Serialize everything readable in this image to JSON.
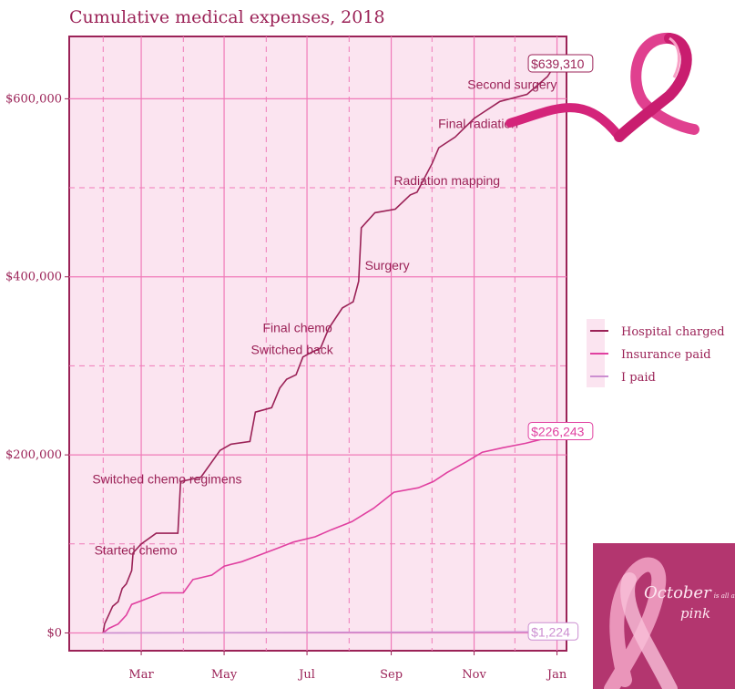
{
  "chart_data": {
    "type": "line",
    "title": "Cumulative medical expenses, 2018",
    "xlabel": "",
    "ylabel": "",
    "x_ticks": [
      "Mar",
      "May",
      "Jul",
      "Sep",
      "Nov",
      "Jan"
    ],
    "y_ticks": [
      "$0",
      "$200,000",
      "$400,000",
      "$600,000"
    ],
    "ylim": [
      -20000,
      670000
    ],
    "grid": true,
    "legend_position": "right",
    "series": [
      {
        "name": "Hospital charged",
        "color": "#9b2257",
        "end_label": "$639,310",
        "points": [
          [
            "2018-02-01",
            0
          ],
          [
            "2018-02-02",
            10000
          ],
          [
            "2018-02-05",
            20000
          ],
          [
            "2018-02-08",
            30000
          ],
          [
            "2018-02-12",
            35000
          ],
          [
            "2018-02-15",
            50000
          ],
          [
            "2018-02-18",
            55000
          ],
          [
            "2018-02-22",
            70000
          ],
          [
            "2018-02-23",
            90000
          ],
          [
            "2018-03-01",
            100000
          ],
          [
            "2018-03-12",
            112000
          ],
          [
            "2018-03-28",
            112000
          ],
          [
            "2018-03-30",
            170000
          ],
          [
            "2018-04-14",
            175000
          ],
          [
            "2018-04-28",
            205000
          ],
          [
            "2018-05-06",
            212000
          ],
          [
            "2018-05-20",
            215000
          ],
          [
            "2018-05-24",
            248000
          ],
          [
            "2018-06-05",
            253000
          ],
          [
            "2018-06-11",
            275000
          ],
          [
            "2018-06-16",
            285000
          ],
          [
            "2018-06-23",
            290000
          ],
          [
            "2018-06-28",
            310000
          ],
          [
            "2018-07-04",
            315000
          ],
          [
            "2018-07-11",
            320000
          ],
          [
            "2018-07-17",
            342000
          ],
          [
            "2018-07-27",
            365000
          ],
          [
            "2018-08-04",
            372000
          ],
          [
            "2018-08-08",
            395000
          ],
          [
            "2018-08-10",
            455000
          ],
          [
            "2018-08-20",
            472000
          ],
          [
            "2018-09-04",
            476000
          ],
          [
            "2018-09-15",
            492000
          ],
          [
            "2018-09-20",
            495000
          ],
          [
            "2018-10-01",
            527000
          ],
          [
            "2018-10-06",
            545000
          ],
          [
            "2018-10-18",
            557000
          ],
          [
            "2018-11-01",
            578000
          ],
          [
            "2018-11-05",
            582000
          ],
          [
            "2018-11-20",
            597000
          ],
          [
            "2018-12-10",
            605000
          ],
          [
            "2018-12-25",
            625000
          ],
          [
            "2018-12-31",
            639310
          ]
        ]
      },
      {
        "name": "Insurance paid",
        "color": "#e040a0",
        "end_label": "$226,243",
        "points": [
          [
            "2018-02-01",
            0
          ],
          [
            "2018-02-05",
            5000
          ],
          [
            "2018-02-12",
            10000
          ],
          [
            "2018-02-15",
            15000
          ],
          [
            "2018-02-18",
            20000
          ],
          [
            "2018-02-22",
            32000
          ],
          [
            "2018-03-01",
            36000
          ],
          [
            "2018-03-16",
            45000
          ],
          [
            "2018-04-01",
            45000
          ],
          [
            "2018-04-08",
            60000
          ],
          [
            "2018-04-22",
            65000
          ],
          [
            "2018-05-01",
            75000
          ],
          [
            "2018-05-14",
            80000
          ],
          [
            "2018-05-28",
            88000
          ],
          [
            "2018-06-09",
            95000
          ],
          [
            "2018-06-21",
            102000
          ],
          [
            "2018-07-07",
            108000
          ],
          [
            "2018-07-19",
            116000
          ],
          [
            "2018-08-03",
            125000
          ],
          [
            "2018-08-19",
            140000
          ],
          [
            "2018-09-03",
            158000
          ],
          [
            "2018-09-21",
            163000
          ],
          [
            "2018-10-02",
            170000
          ],
          [
            "2018-10-12",
            180000
          ],
          [
            "2018-10-26",
            192000
          ],
          [
            "2018-11-07",
            203000
          ],
          [
            "2018-11-22",
            208000
          ],
          [
            "2018-12-09",
            213000
          ],
          [
            "2018-12-22",
            218000
          ],
          [
            "2018-12-31",
            226243
          ]
        ]
      },
      {
        "name": "I paid",
        "color": "#cc8fd1",
        "end_label": "$1,224",
        "points": [
          [
            "2018-02-01",
            0
          ],
          [
            "2018-12-31",
            1224
          ]
        ]
      }
    ],
    "annotations": [
      {
        "text": "Started chemo",
        "x": "2018-02-25",
        "y": 88000
      },
      {
        "text": "Switched chemo regimens",
        "x": "2018-03-20",
        "y": 168000
      },
      {
        "text": "Switched back",
        "x": "2018-06-20",
        "y": 313000
      },
      {
        "text": "Final chemo",
        "x": "2018-06-24",
        "y": 338000
      },
      {
        "text": "Surgery",
        "x": "2018-08-29",
        "y": 408000
      },
      {
        "text": "Radiation mapping",
        "x": "2018-10-12",
        "y": 503000
      },
      {
        "text": "Final radiation",
        "x": "2018-11-04",
        "y": 567000
      },
      {
        "text": "Second surgery",
        "x": "2018-11-29",
        "y": 611000
      }
    ]
  },
  "decor": {
    "promo_text_line1": "October",
    "promo_text_small": "is all about",
    "promo_text_line2": "pink"
  }
}
